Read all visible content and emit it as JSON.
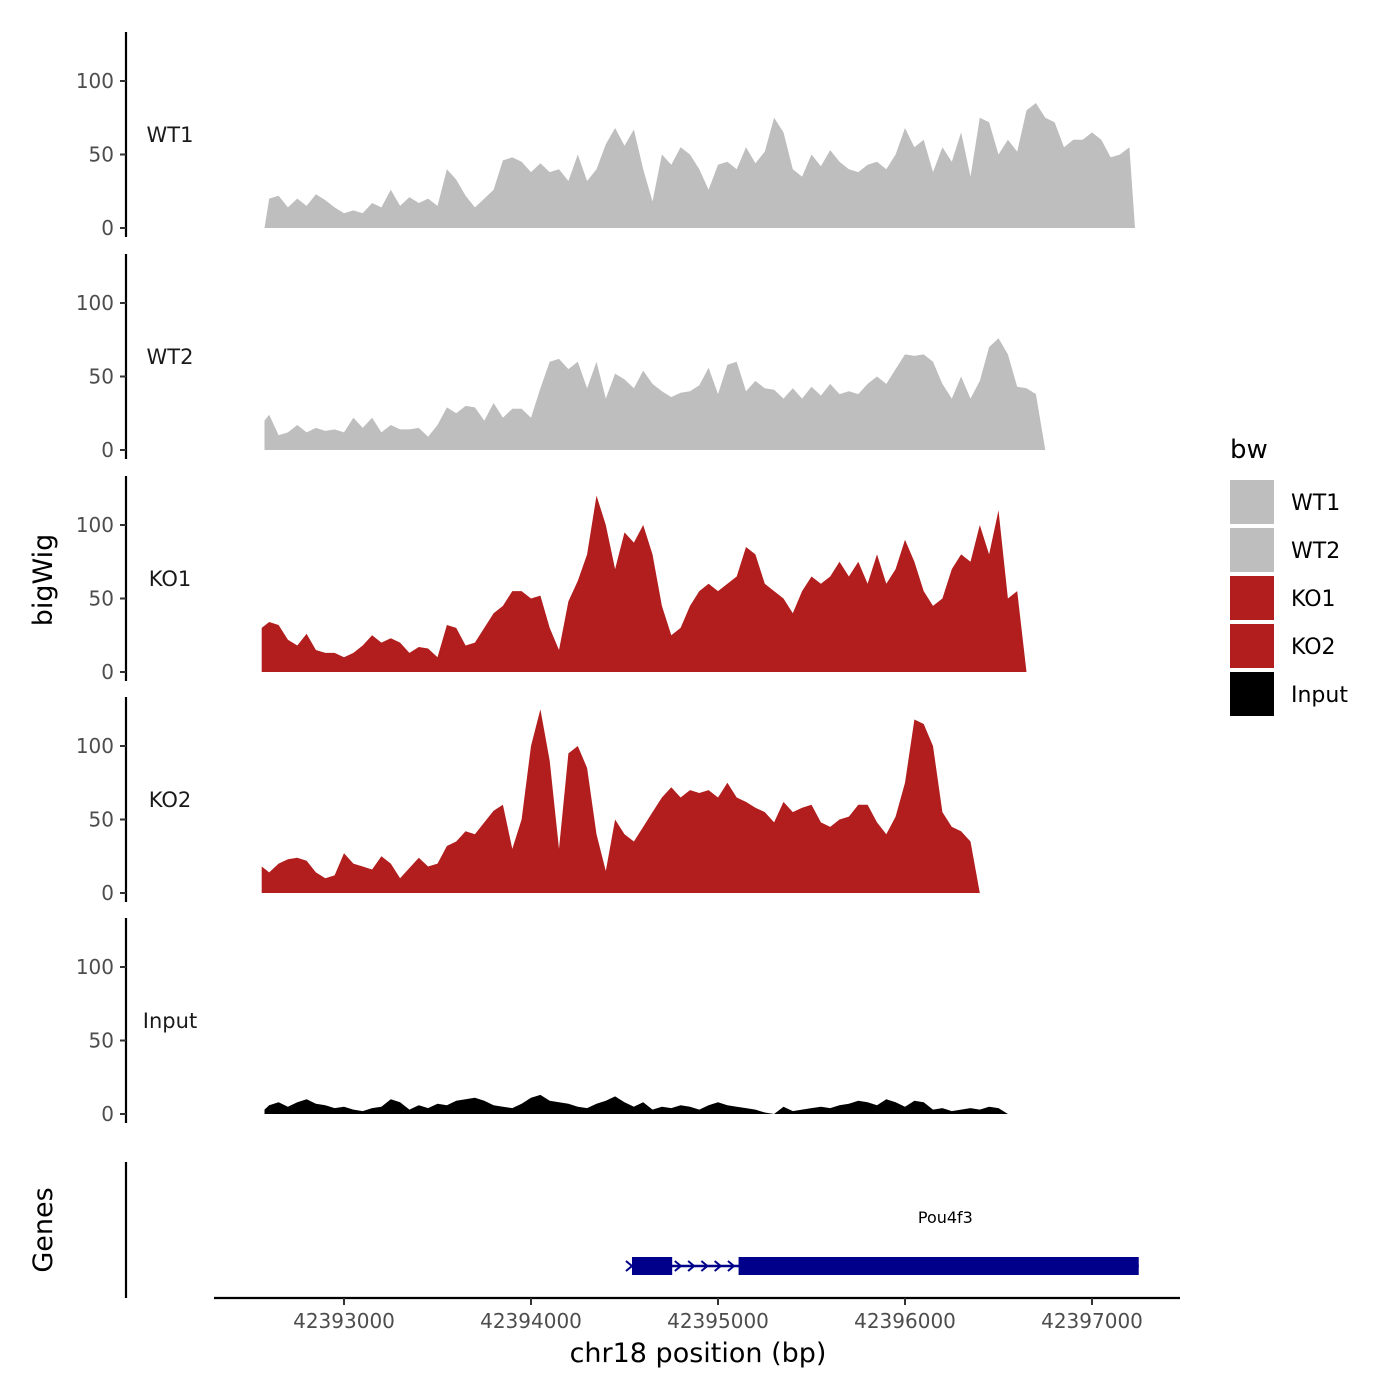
{
  "chart_data": {
    "type": "area",
    "ylabel": "bigWig",
    "xlabel": "chr18 position (bp)",
    "ylim": [
      0,
      130
    ],
    "yticks": [
      0,
      50,
      100
    ],
    "xlim": [
      42392300,
      42397500
    ],
    "xticks": [
      42393000,
      42394000,
      42395000,
      42396000,
      42397000
    ],
    "colors": {
      "WT": "#bebebe",
      "KO": "#b21e1e",
      "Input": "#000000",
      "gene": "#00008b"
    },
    "legend": {
      "title": "bw",
      "position": "right",
      "entries": [
        {
          "label": "WT1",
          "color": "#bebebe"
        },
        {
          "label": "WT2",
          "color": "#bebebe"
        },
        {
          "label": "KO1",
          "color": "#b21e1e"
        },
        {
          "label": "KO2",
          "color": "#b21e1e"
        },
        {
          "label": "Input",
          "color": "#000000"
        }
      ]
    },
    "series": [
      {
        "name": "WT1",
        "color": "#bebebe",
        "x": [
          42392575,
          42392600,
          42392650,
          42392700,
          42392750,
          42392800,
          42392850,
          42392900,
          42392950,
          42393000,
          42393050,
          42393100,
          42393150,
          42393200,
          42393250,
          42393300,
          42393350,
          42393400,
          42393450,
          42393500,
          42393550,
          42393600,
          42393650,
          42393700,
          42393750,
          42393800,
          42393850,
          42393900,
          42393950,
          42394000,
          42394050,
          42394100,
          42394150,
          42394200,
          42394250,
          42394300,
          42394350,
          42394400,
          42394450,
          42394500,
          42394550,
          42394600,
          42394650,
          42394700,
          42394750,
          42394800,
          42394850,
          42394900,
          42394950,
          42395000,
          42395050,
          42395100,
          42395150,
          42395200,
          42395250,
          42395300,
          42395350,
          42395400,
          42395450,
          42395500,
          42395550,
          42395600,
          42395650,
          42395700,
          42395750,
          42395800,
          42395850,
          42395900,
          42395950,
          42396000,
          42396050,
          42396100,
          42396150,
          42396200,
          42396250,
          42396300,
          42396350,
          42396400,
          42396450,
          42396500,
          42396550,
          42396600,
          42396650,
          42396700,
          42396750,
          42396800,
          42396850,
          42396900,
          42396950,
          42397000,
          42397050,
          42397100,
          42397150,
          42397200,
          42397230
        ],
        "y": [
          0,
          20,
          22,
          14,
          20,
          15,
          23,
          19,
          14,
          10,
          12,
          10,
          17,
          14,
          26,
          15,
          21,
          17,
          20,
          15,
          40,
          33,
          22,
          14,
          20,
          26,
          46,
          48,
          45,
          38,
          44,
          38,
          40,
          32,
          50,
          32,
          40,
          57,
          68,
          56,
          67,
          40,
          18,
          50,
          43,
          55,
          50,
          40,
          26,
          43,
          45,
          40,
          55,
          44,
          52,
          75,
          65,
          40,
          35,
          50,
          42,
          53,
          45,
          40,
          38,
          43,
          45,
          40,
          50,
          68,
          55,
          60,
          38,
          55,
          45,
          65,
          35,
          75,
          72,
          50,
          60,
          52,
          80,
          85,
          75,
          72,
          55,
          60,
          60,
          65,
          60,
          48,
          50,
          55,
          0
        ]
      },
      {
        "name": "WT2",
        "color": "#bebebe",
        "x": [
          42392575,
          42392600,
          42392650,
          42392700,
          42392750,
          42392800,
          42392850,
          42392900,
          42392950,
          42393000,
          42393050,
          42393100,
          42393150,
          42393200,
          42393250,
          42393300,
          42393350,
          42393400,
          42393450,
          42393500,
          42393550,
          42393600,
          42393650,
          42393700,
          42393750,
          42393800,
          42393850,
          42393900,
          42393950,
          42394000,
          42394050,
          42394100,
          42394150,
          42394200,
          42394250,
          42394300,
          42394350,
          42394400,
          42394450,
          42394500,
          42394550,
          42394600,
          42394650,
          42394700,
          42394750,
          42394800,
          42394850,
          42394900,
          42394950,
          42395000,
          42395050,
          42395100,
          42395150,
          42395200,
          42395250,
          42395300,
          42395350,
          42395400,
          42395450,
          42395500,
          42395550,
          42395600,
          42395650,
          42395700,
          42395750,
          42395800,
          42395850,
          42395900,
          42395950,
          42396000,
          42396050,
          42396100,
          42396150,
          42396200,
          42396250,
          42396300,
          42396350,
          42396400,
          42396450,
          42396500,
          42396550,
          42396600,
          42396650,
          42396700,
          42396750,
          42396800,
          42396850,
          42396900,
          42396950,
          42397000,
          42397050,
          42397100,
          42397150,
          42397200,
          42397230
        ],
        "y": [
          20,
          24,
          10,
          12,
          17,
          12,
          15,
          13,
          14,
          12,
          22,
          15,
          22,
          12,
          17,
          14,
          14,
          15,
          9,
          17,
          29,
          25,
          30,
          29,
          20,
          32,
          22,
          28,
          28,
          22,
          42,
          60,
          62,
          55,
          60,
          42,
          60,
          35,
          52,
          48,
          42,
          54,
          45,
          40,
          36,
          39,
          40,
          44,
          56,
          38,
          58,
          60,
          40,
          47,
          42,
          41,
          35,
          42,
          35,
          43,
          37,
          45,
          38,
          40,
          38,
          45,
          50,
          45,
          55,
          65,
          64,
          65,
          60,
          45,
          35,
          50,
          35,
          47,
          70,
          76,
          65,
          43,
          42,
          38,
          0,
          0,
          0,
          0,
          0,
          0,
          0,
          0,
          0,
          0,
          0
        ]
      },
      {
        "name": "KO1",
        "color": "#b21e1e",
        "x": [
          42392560,
          42392600,
          42392650,
          42392700,
          42392750,
          42392800,
          42392850,
          42392900,
          42392950,
          42393000,
          42393050,
          42393100,
          42393150,
          42393200,
          42393250,
          42393300,
          42393350,
          42393400,
          42393450,
          42393500,
          42393550,
          42393600,
          42393650,
          42393700,
          42393750,
          42393800,
          42393850,
          42393900,
          42393950,
          42394000,
          42394050,
          42394100,
          42394150,
          42394200,
          42394250,
          42394300,
          42394350,
          42394400,
          42394450,
          42394500,
          42394550,
          42394600,
          42394650,
          42394700,
          42394750,
          42394800,
          42394850,
          42394900,
          42394950,
          42395000,
          42395050,
          42395100,
          42395150,
          42395200,
          42395250,
          42395300,
          42395350,
          42395400,
          42395450,
          42395500,
          42395550,
          42395600,
          42395650,
          42395700,
          42395750,
          42395800,
          42395850,
          42395900,
          42395950,
          42396000,
          42396050,
          42396100,
          42396150,
          42396200,
          42396250,
          42396300,
          42396350,
          42396400,
          42396450,
          42396500,
          42396550,
          42396600,
          42396650,
          42396700,
          42396750,
          42396800,
          42396850,
          42396900,
          42396950,
          42397000,
          42397050,
          42397100,
          42397150,
          42397200,
          42397230
        ],
        "y": [
          30,
          34,
          32,
          22,
          18,
          26,
          15,
          13,
          13,
          10,
          13,
          18,
          25,
          20,
          23,
          20,
          13,
          17,
          16,
          10,
          32,
          30,
          18,
          20,
          30,
          40,
          45,
          55,
          55,
          50,
          52,
          30,
          15,
          48,
          62,
          80,
          120,
          100,
          70,
          95,
          88,
          100,
          80,
          45,
          25,
          30,
          45,
          55,
          60,
          55,
          60,
          65,
          85,
          80,
          60,
          55,
          50,
          40,
          55,
          65,
          60,
          65,
          75,
          65,
          75,
          60,
          80,
          60,
          70,
          90,
          75,
          55,
          45,
          50,
          70,
          80,
          75,
          100,
          80,
          110,
          50,
          55,
          0,
          0,
          0,
          0,
          0,
          0,
          0,
          0,
          0,
          0,
          0,
          0,
          0
        ]
      },
      {
        "name": "KO2",
        "color": "#b21e1e",
        "x": [
          42392560,
          42392600,
          42392650,
          42392700,
          42392750,
          42392800,
          42392850,
          42392900,
          42392950,
          42393000,
          42393050,
          42393100,
          42393150,
          42393200,
          42393250,
          42393300,
          42393350,
          42393400,
          42393450,
          42393500,
          42393550,
          42393600,
          42393650,
          42393700,
          42393750,
          42393800,
          42393850,
          42393900,
          42393950,
          42394000,
          42394050,
          42394100,
          42394150,
          42394200,
          42394250,
          42394300,
          42394350,
          42394400,
          42394450,
          42394500,
          42394550,
          42394600,
          42394650,
          42394700,
          42394750,
          42394800,
          42394850,
          42394900,
          42394950,
          42395000,
          42395050,
          42395100,
          42395150,
          42395200,
          42395250,
          42395300,
          42395350,
          42395400,
          42395450,
          42395500,
          42395550,
          42395600,
          42395650,
          42395700,
          42395750,
          42395800,
          42395850,
          42395900,
          42395950,
          42396000,
          42396050,
          42396100,
          42396150,
          42396200,
          42396250,
          42396300,
          42396350,
          42396400,
          42396450,
          42396500,
          42396550,
          42396600,
          42396650,
          42396700,
          42396750,
          42396800,
          42396850,
          42396900,
          42396950,
          42397000,
          42397050,
          42397100,
          42397150,
          42397200,
          42397230
        ],
        "y": [
          18,
          14,
          20,
          23,
          24,
          22,
          14,
          10,
          12,
          27,
          20,
          18,
          16,
          25,
          20,
          10,
          17,
          24,
          18,
          20,
          32,
          35,
          42,
          40,
          48,
          56,
          60,
          30,
          50,
          100,
          125,
          90,
          30,
          95,
          100,
          85,
          40,
          15,
          50,
          40,
          35,
          45,
          55,
          65,
          72,
          65,
          70,
          68,
          70,
          65,
          75,
          65,
          62,
          58,
          55,
          48,
          62,
          55,
          58,
          60,
          48,
          45,
          50,
          52,
          60,
          60,
          48,
          40,
          52,
          75,
          118,
          115,
          100,
          55,
          45,
          42,
          35,
          0,
          0,
          0,
          0,
          0,
          0,
          0,
          0,
          0,
          0,
          0,
          0,
          0,
          0,
          0,
          0,
          0,
          0
        ]
      },
      {
        "name": "Input",
        "color": "#000000",
        "x": [
          42392575,
          42392600,
          42392650,
          42392700,
          42392750,
          42392800,
          42392850,
          42392900,
          42392950,
          42393000,
          42393050,
          42393100,
          42393150,
          42393200,
          42393250,
          42393300,
          42393350,
          42393400,
          42393450,
          42393500,
          42393550,
          42393600,
          42393650,
          42393700,
          42393750,
          42393800,
          42393850,
          42393900,
          42393950,
          42394000,
          42394050,
          42394100,
          42394150,
          42394200,
          42394250,
          42394300,
          42394350,
          42394400,
          42394450,
          42394500,
          42394550,
          42394600,
          42394650,
          42394700,
          42394750,
          42394800,
          42394850,
          42394900,
          42394950,
          42395000,
          42395050,
          42395100,
          42395150,
          42395200,
          42395250,
          42395300,
          42395350,
          42395400,
          42395450,
          42395500,
          42395550,
          42395600,
          42395650,
          42395700,
          42395750,
          42395800,
          42395850,
          42395900,
          42395950,
          42396000,
          42396050,
          42396100,
          42396150,
          42396200,
          42396250,
          42396300,
          42396350,
          42396400,
          42396450,
          42396500,
          42396550,
          42396600,
          42396650,
          42396700,
          42396750,
          42396800,
          42396850,
          42396900,
          42396950,
          42397000,
          42397050,
          42397100,
          42397150,
          42397200,
          42397250
        ],
        "y": [
          3,
          6,
          8,
          5,
          8,
          10,
          7,
          6,
          4,
          5,
          3,
          2,
          4,
          5,
          10,
          8,
          3,
          6,
          4,
          7,
          6,
          9,
          10,
          11,
          9,
          6,
          5,
          4,
          7,
          11,
          13,
          9,
          8,
          7,
          5,
          4,
          7,
          9,
          12,
          8,
          5,
          8,
          3,
          5,
          4,
          6,
          5,
          3,
          6,
          8,
          6,
          5,
          4,
          3,
          1,
          0,
          5,
          2,
          3,
          4,
          5,
          4,
          6,
          7,
          9,
          8,
          6,
          10,
          8,
          5,
          9,
          8,
          3,
          4,
          2,
          3,
          4,
          3,
          5,
          4,
          0,
          0,
          0,
          0,
          0,
          0,
          0,
          0,
          0,
          0,
          0,
          0,
          0,
          0,
          0
        ]
      }
    ],
    "genes": [
      {
        "name": "Pou4f3",
        "strand": "+",
        "start": 42394540,
        "end": 42397250,
        "exons": [
          [
            42394540,
            42394755
          ],
          [
            42395110,
            42397250
          ]
        ]
      }
    ],
    "gene_track_label": "Genes"
  }
}
